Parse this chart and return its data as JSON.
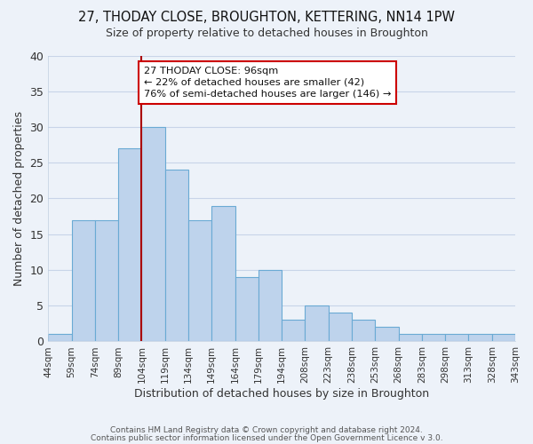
{
  "title": "27, THODAY CLOSE, BROUGHTON, KETTERING, NN14 1PW",
  "subtitle": "Size of property relative to detached houses in Broughton",
  "xlabel": "Distribution of detached houses by size in Broughton",
  "ylabel": "Number of detached properties",
  "bar_labels": [
    "44sqm",
    "59sqm",
    "74sqm",
    "89sqm",
    "104sqm",
    "119sqm",
    "134sqm",
    "149sqm",
    "164sqm",
    "179sqm",
    "194sqm",
    "208sqm",
    "223sqm",
    "238sqm",
    "253sqm",
    "268sqm",
    "283sqm",
    "298sqm",
    "313sqm",
    "328sqm",
    "343sqm"
  ],
  "bar_values": [
    1,
    17,
    17,
    27,
    30,
    24,
    17,
    19,
    9,
    10,
    3,
    5,
    4,
    3,
    2,
    1,
    1,
    1,
    1,
    1
  ],
  "bar_color": "#bed3ec",
  "bar_edge_color": "#6aaad4",
  "grid_color": "#c8d4e8",
  "background_color": "#edf2f9",
  "vline_color": "#aa0000",
  "annotation_line1": "27 THODAY CLOSE: 96sqm",
  "annotation_line2": "← 22% of detached houses are smaller (42)",
  "annotation_line3": "76% of semi-detached houses are larger (146) →",
  "annotation_box_color": "#ffffff",
  "annotation_box_edge": "#cc0000",
  "ylim": [
    0,
    40
  ],
  "yticks": [
    0,
    5,
    10,
    15,
    20,
    25,
    30,
    35,
    40
  ],
  "footer_line1": "Contains HM Land Registry data © Crown copyright and database right 2024.",
  "footer_line2": "Contains public sector information licensed under the Open Government Licence v 3.0."
}
